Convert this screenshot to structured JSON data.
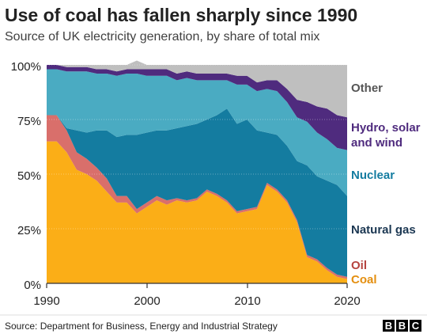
{
  "chart_data": {
    "type": "area",
    "stacked": true,
    "title": "Use of coal has fallen sharply since 1990",
    "subtitle": "Source of UK electricity generation, by share of total mix",
    "source": "Source: Department for Business, Energy and Industrial Strategy",
    "brand": [
      "B",
      "B",
      "C"
    ],
    "xlim": [
      1990,
      2020
    ],
    "ylim": [
      0,
      100
    ],
    "grid": true,
    "legend": "right (direct labels)",
    "x_ticks": [
      "1990",
      "2000",
      "2010",
      "2020"
    ],
    "y_ticks": [
      "100%",
      "75%",
      "50%",
      "25%",
      "0%"
    ],
    "x": [
      1990,
      1991,
      1992,
      1993,
      1994,
      1995,
      1996,
      1997,
      1998,
      1999,
      2000,
      2001,
      2002,
      2003,
      2004,
      2005,
      2006,
      2007,
      2008,
      2009,
      2010,
      2011,
      2012,
      2013,
      2014,
      2015,
      2016,
      2017,
      2018,
      2019,
      2020
    ],
    "series": [
      {
        "name": "Coal",
        "color": "#fbae17",
        "values": [
          65,
          65,
          60,
          52,
          50,
          47,
          42,
          37,
          37,
          32,
          35,
          38,
          36,
          38,
          37,
          38,
          42,
          40,
          37,
          32,
          33,
          34,
          45,
          42,
          37,
          28,
          12,
          10,
          6,
          3,
          2
        ]
      },
      {
        "name": "Oil",
        "color": "#d96f6b",
        "values": [
          12,
          12,
          10,
          8,
          7,
          6,
          6,
          3,
          3,
          2,
          2,
          2,
          2,
          1,
          1,
          1,
          1,
          1,
          1,
          1,
          1,
          1,
          1,
          1,
          1,
          1,
          1,
          1,
          1,
          1,
          1
        ]
      },
      {
        "name": "Natural gas",
        "color": "#147ca0",
        "values": [
          0,
          0,
          1,
          10,
          12,
          17,
          22,
          27,
          28,
          34,
          32,
          30,
          32,
          32,
          34,
          34,
          32,
          36,
          42,
          40,
          41,
          35,
          23,
          25,
          25,
          27,
          41,
          38,
          40,
          41,
          37
        ]
      },
      {
        "name": "Nuclear",
        "color": "#4aabc2",
        "values": [
          21,
          21,
          26,
          27,
          28,
          26,
          26,
          28,
          28,
          28,
          26,
          25,
          25,
          22,
          22,
          20,
          18,
          16,
          13,
          18,
          16,
          18,
          20,
          20,
          20,
          20,
          20,
          20,
          19,
          17,
          21
        ]
      },
      {
        "name": "Hydro, solar and wind",
        "color": "#4f2b7e",
        "values": [
          2,
          2,
          2,
          2,
          2,
          2,
          2,
          2,
          2,
          2,
          3,
          3,
          3,
          3,
          3,
          3,
          3,
          3,
          3,
          4,
          4,
          4,
          4,
          5,
          6,
          8,
          9,
          12,
          14,
          15,
          15
        ]
      },
      {
        "name": "Other",
        "color": "#bfbfbf",
        "values": [
          0,
          0,
          1,
          1,
          1,
          2,
          2,
          3,
          2,
          4,
          2,
          2,
          2,
          4,
          3,
          4,
          4,
          4,
          4,
          5,
          5,
          8,
          7,
          7,
          11,
          16,
          17,
          19,
          20,
          23,
          24
        ]
      }
    ]
  }
}
